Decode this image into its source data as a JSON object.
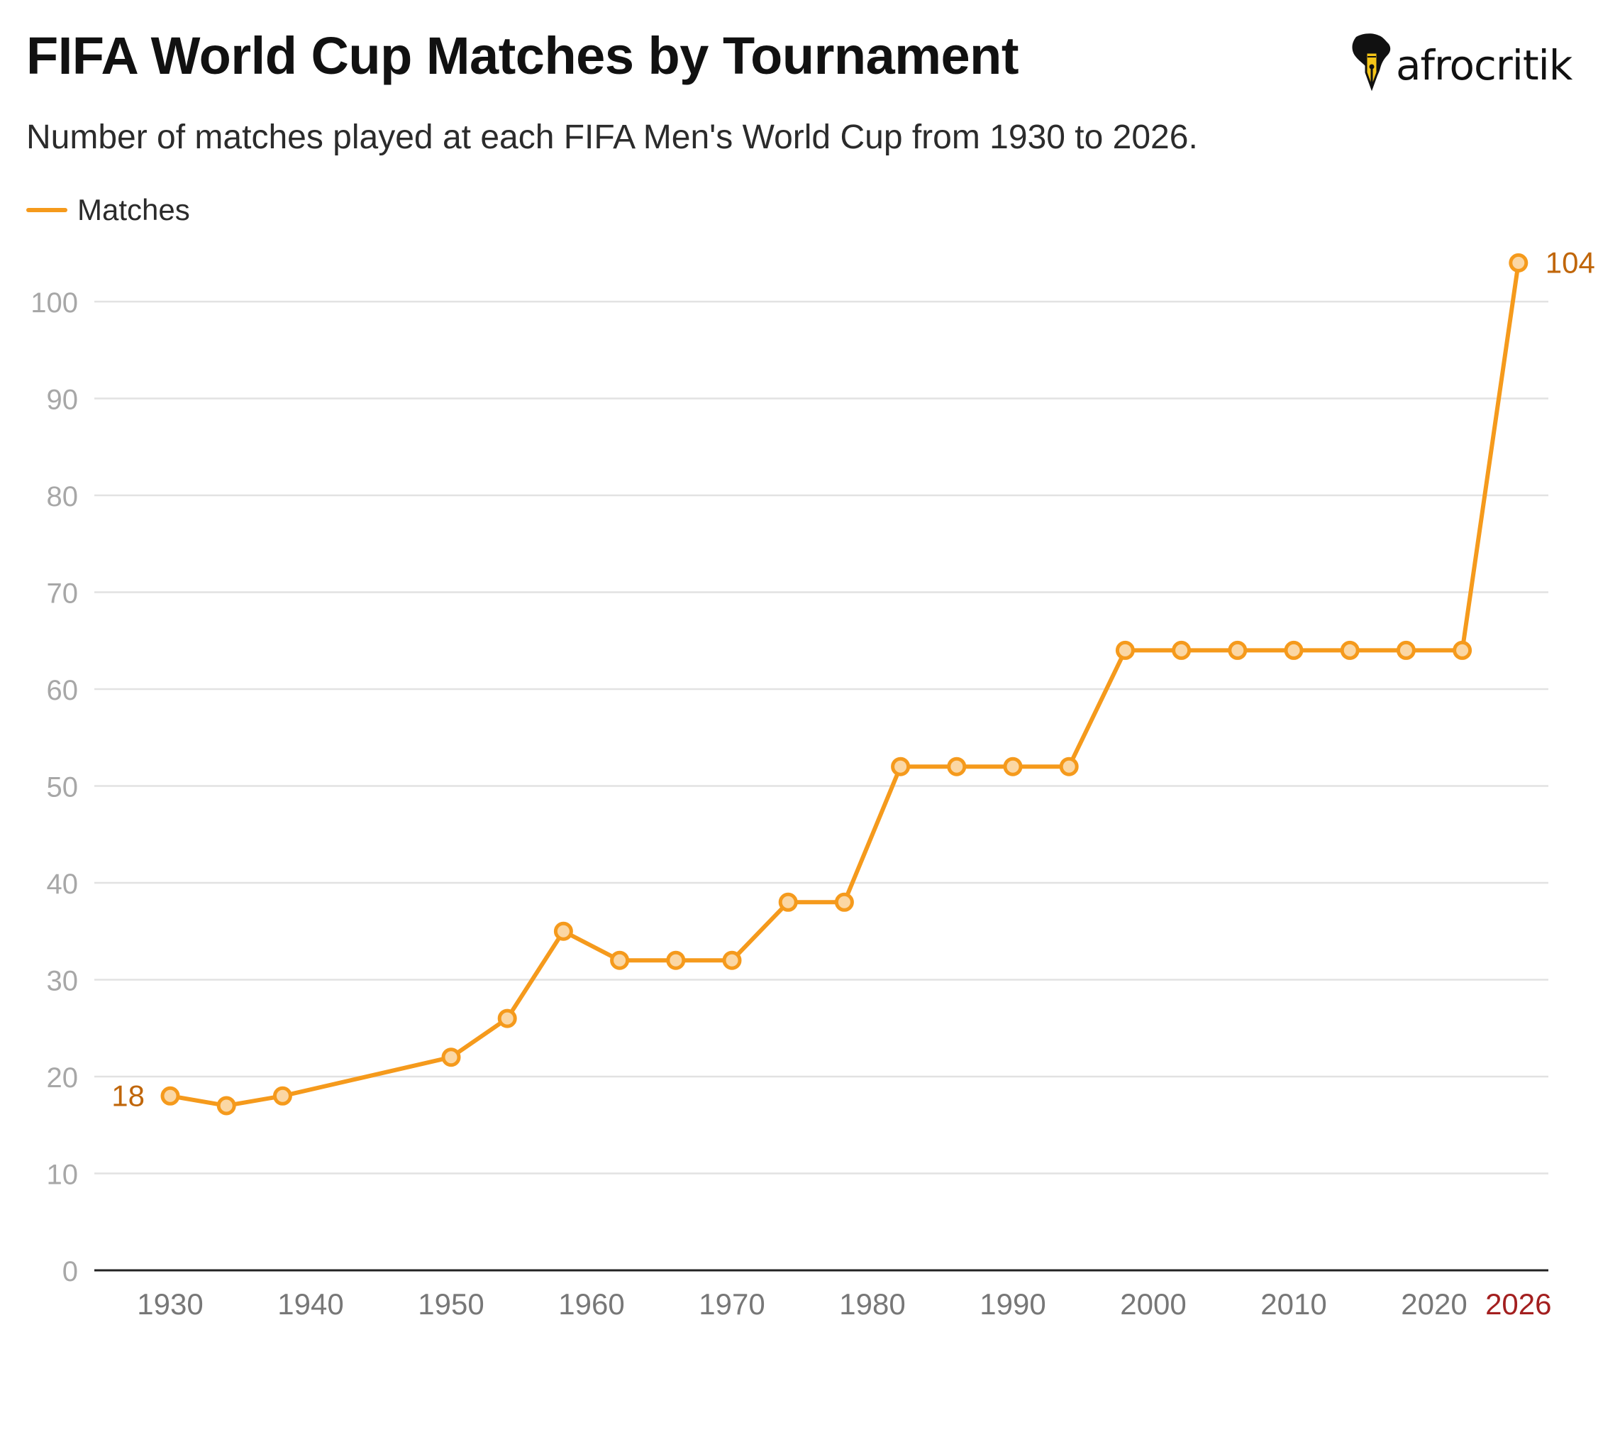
{
  "header": {
    "title": "FIFA World Cup Matches by Tournament",
    "subtitle": "Number of matches played at each FIFA Men's World Cup from 1930 to 2026.",
    "logo_text": "afrocritik",
    "logo_icon": "africa-pen-nib-icon"
  },
  "legend": {
    "label": "Matches"
  },
  "colors": {
    "line": "#f59a1c",
    "marker_fill": "#fbd7a4",
    "label_accent": "#c0660a",
    "highlight_tick": "#a31f1f",
    "grid": "#e2e2e2",
    "axis_text": "#a7a7a7",
    "x_axis_text": "#777777",
    "baseline": "#222222"
  },
  "chart_data": {
    "type": "line",
    "title": "FIFA World Cup Matches by Tournament",
    "subtitle": "Number of matches played at each FIFA Men's World Cup from 1930 to 2026.",
    "xlabel": "",
    "ylabel": "",
    "xlim": [
      1927,
      2031
    ],
    "ylim": [
      0,
      104
    ],
    "yticks": [
      0,
      10,
      20,
      30,
      40,
      50,
      60,
      70,
      80,
      90,
      100
    ],
    "xticks": [
      "1930",
      "1940",
      "1950",
      "1960",
      "1970",
      "1980",
      "1990",
      "2000",
      "2010",
      "2020",
      "2026"
    ],
    "highlighted_xtick": "2026",
    "grid": true,
    "legend_position": "top-left",
    "series": [
      {
        "name": "Matches",
        "x": [
          1930,
          1934,
          1938,
          1950,
          1954,
          1958,
          1962,
          1966,
          1970,
          1974,
          1978,
          1982,
          1986,
          1990,
          1994,
          1998,
          2002,
          2006,
          2010,
          2014,
          2018,
          2022,
          2026
        ],
        "values": [
          18,
          17,
          18,
          22,
          26,
          35,
          32,
          32,
          32,
          38,
          38,
          52,
          52,
          52,
          52,
          64,
          64,
          64,
          64,
          64,
          64,
          64,
          104
        ]
      }
    ],
    "annotations": [
      {
        "x": 1930,
        "y": 18,
        "text": "18",
        "side": "left"
      },
      {
        "x": 2026,
        "y": 104,
        "text": "104",
        "side": "right"
      }
    ]
  }
}
